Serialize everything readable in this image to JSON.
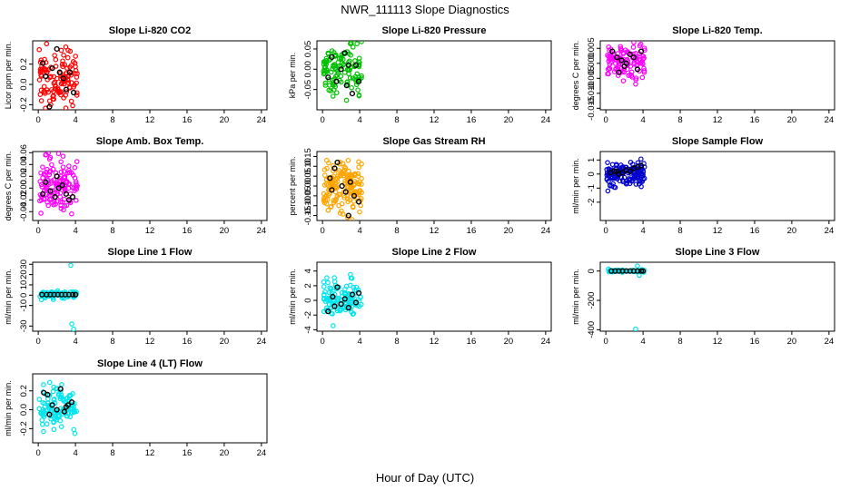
{
  "chart_data": {
    "type": "scatter",
    "title": "NWR_111113  Slope Diagnostics",
    "xlabel": "Hour of Day (UTC)",
    "xlim": [
      0,
      24
    ],
    "x_ticks": [
      0,
      4,
      8,
      12,
      16,
      20,
      24
    ],
    "panels": [
      {
        "id": "co2",
        "title": "Slope Li-820 CO2",
        "ylabel": "Licor ppm per min.",
        "ylim": [
          -0.25,
          0.43
        ],
        "y_ticks": [
          -0.2,
          0.0,
          0.2
        ],
        "y_tick_labels": [
          "-0.2",
          "0.0",
          "0.2"
        ],
        "color": "#ff0000",
        "seed": 11,
        "n": 120,
        "x_range": [
          0.1,
          4.2
        ],
        "y_spread": 0.19,
        "y_center": 0.06,
        "black_points": [
          [
            0.5,
            0.21
          ],
          [
            0.8,
            0.08
          ],
          [
            1.2,
            -0.22
          ],
          [
            1.5,
            0.16
          ],
          [
            2.0,
            0.35
          ],
          [
            2.3,
            0.12
          ],
          [
            2.7,
            0.06
          ],
          [
            3.0,
            -0.05
          ],
          [
            3.4,
            0.12
          ],
          [
            3.8,
            -0.08
          ]
        ]
      },
      {
        "id": "pressure",
        "title": "Slope Li-820 Pressure",
        "ylabel": "kPa per min.",
        "ylim": [
          -0.1,
          0.07
        ],
        "y_ticks": [
          -0.05,
          0.0,
          0.05
        ],
        "y_tick_labels": [
          "-0.05",
          "0.00",
          "0.05"
        ],
        "color": "#00c000",
        "seed": 23,
        "n": 120,
        "x_range": [
          0.1,
          4.2
        ],
        "y_spread": 0.04,
        "y_center": 0.0,
        "black_points": [
          [
            0.6,
            -0.02
          ],
          [
            1.0,
            0.03
          ],
          [
            1.5,
            -0.03
          ],
          [
            2.0,
            0.0
          ],
          [
            2.4,
            0.04
          ],
          [
            2.8,
            0.01
          ],
          [
            3.2,
            -0.06
          ],
          [
            3.6,
            0.01
          ],
          [
            3.9,
            -0.03
          ],
          [
            2.6,
            -0.04
          ]
        ]
      },
      {
        "id": "temp",
        "title": "Slope Li-820 Temp.",
        "ylabel": "degrees C per min.",
        "ylim": [
          -0.0155,
          0.0075
        ],
        "y_ticks": [
          -0.015,
          -0.01,
          -0.005,
          0.0,
          0.005
        ],
        "y_tick_labels": [
          "-0.015",
          "-0.010",
          "-0.005",
          "0.000",
          "0.005"
        ],
        "color": "#ff00ff",
        "seed": 37,
        "n": 110,
        "x_range": [
          0.1,
          4.2
        ],
        "y_spread": 0.0045,
        "y_center": 0.0,
        "black_points": [
          [
            0.7,
            0.004
          ],
          [
            1.2,
            0.002
          ],
          [
            1.7,
            0.001
          ],
          [
            2.2,
            0.0
          ],
          [
            2.6,
            0.003
          ],
          [
            3.0,
            0.002
          ],
          [
            3.4,
            -0.002
          ],
          [
            3.8,
            0.004
          ],
          [
            2.0,
            -0.001
          ],
          [
            1.4,
            -0.003
          ]
        ]
      },
      {
        "id": "ambbox",
        "title": "Slope Amb. Box Temp.",
        "ylabel": "degrees C per min.",
        "ylim": [
          -0.055,
          0.062
        ],
        "y_ticks": [
          -0.04,
          -0.02,
          0.0,
          0.02,
          0.04,
          0.06
        ],
        "y_tick_labels": [
          "-0.04",
          "-0.02",
          "0.00",
          "0.02",
          "0.04",
          "0.06"
        ],
        "color": "#ff00ff",
        "seed": 41,
        "n": 130,
        "x_range": [
          0.1,
          4.2
        ],
        "y_spread": 0.03,
        "y_center": 0.005,
        "black_points": [
          [
            0.5,
            -0.01
          ],
          [
            0.8,
            0.01
          ],
          [
            1.3,
            -0.005
          ],
          [
            1.8,
            -0.015
          ],
          [
            2.2,
            0.0
          ],
          [
            2.6,
            0.005
          ],
          [
            3.0,
            -0.01
          ],
          [
            3.3,
            -0.02
          ],
          [
            3.7,
            -0.015
          ],
          [
            2.0,
            0.02
          ]
        ]
      },
      {
        "id": "rh",
        "title": "Slope Gas Stream RH",
        "ylabel": "percent per min.",
        "ylim": [
          -0.175,
          0.175
        ],
        "y_ticks": [
          -0.15,
          -0.1,
          -0.05,
          0.0,
          0.05,
          0.1,
          0.15
        ],
        "y_tick_labels": [
          "-0.15",
          "-0.10",
          "-0.05",
          "0.00",
          "0.05",
          "0.10",
          "0.15"
        ],
        "color": "#ffa500",
        "seed": 53,
        "n": 170,
        "x_range": [
          0.1,
          4.2
        ],
        "y_spread": 0.08,
        "y_center": 0.0,
        "black_points": [
          [
            0.8,
            0.04
          ],
          [
            1.3,
            0.09
          ],
          [
            1.6,
            0.12
          ],
          [
            2.1,
            0.0
          ],
          [
            2.5,
            -0.03
          ],
          [
            3.0,
            0.02
          ],
          [
            3.4,
            -0.05
          ],
          [
            3.9,
            -0.08
          ],
          [
            2.8,
            -0.15
          ],
          [
            1.0,
            -0.02
          ]
        ]
      },
      {
        "id": "sample",
        "title": "Slope Sample Flow",
        "ylabel": "ml/min per min.",
        "ylim": [
          -3.3,
          1.6
        ],
        "y_ticks": [
          -2,
          -1,
          0,
          1
        ],
        "y_tick_labels": [
          "-2",
          "-1",
          "0",
          "1"
        ],
        "color": "#0000cc",
        "seed": 67,
        "n": 140,
        "x_range": [
          0.1,
          4.2
        ],
        "y_spread": 0.55,
        "y_center": 0.0,
        "black_points": [
          [
            0.5,
            0.1
          ],
          [
            0.9,
            0.2
          ],
          [
            1.4,
            0.0
          ],
          [
            1.8,
            0.1
          ],
          [
            2.2,
            0.3
          ],
          [
            2.6,
            0.2
          ],
          [
            3.0,
            0.4
          ],
          [
            3.4,
            0.5
          ],
          [
            3.8,
            0.6
          ],
          [
            1.2,
            0.2
          ]
        ]
      },
      {
        "id": "line1",
        "title": "Slope Line 1 Flow",
        "ylabel": "ml/min per min.",
        "ylim": [
          -35,
          32
        ],
        "y_ticks": [
          -30,
          -10,
          0,
          10,
          20,
          30
        ],
        "y_tick_labels": [
          "-30",
          "-10",
          "0",
          "10",
          "20",
          "30"
        ],
        "color": "#00e5ee",
        "seed": 71,
        "n": 90,
        "x_range": [
          0.1,
          4.2
        ],
        "y_spread": 2.5,
        "y_center": 0.5,
        "black_points": [
          [
            0.4,
            0.5
          ],
          [
            0.9,
            0.5
          ],
          [
            1.3,
            0.5
          ],
          [
            1.7,
            0.5
          ],
          [
            2.1,
            0.5
          ],
          [
            2.5,
            0.5
          ],
          [
            2.9,
            0.5
          ],
          [
            3.3,
            0.5
          ],
          [
            3.7,
            0.5
          ],
          [
            4.0,
            0.5
          ]
        ],
        "extra_points": [
          [
            3.5,
            29
          ],
          [
            3.6,
            -28
          ],
          [
            3.8,
            -33
          ]
        ]
      },
      {
        "id": "line2",
        "title": "Slope Line 2 Flow",
        "ylabel": "ml/min per min.",
        "ylim": [
          -4.2,
          5.2
        ],
        "y_ticks": [
          -4,
          -2,
          0,
          2,
          4
        ],
        "y_tick_labels": [
          "-4",
          "-2",
          "0",
          "2",
          "4"
        ],
        "color": "#00e5ee",
        "seed": 83,
        "n": 120,
        "x_range": [
          0.1,
          4.2
        ],
        "y_spread": 1.5,
        "y_center": 0.3,
        "black_points": [
          [
            0.6,
            -1.5
          ],
          [
            1.1,
            0.5
          ],
          [
            1.6,
            1.8
          ],
          [
            2.0,
            -0.5
          ],
          [
            2.4,
            0.2
          ],
          [
            2.8,
            -1.0
          ],
          [
            3.2,
            0.8
          ],
          [
            3.6,
            -0.3
          ],
          [
            3.9,
            1.0
          ],
          [
            1.3,
            -0.8
          ]
        ]
      },
      {
        "id": "line3",
        "title": "Slope Line 3 Flow",
        "ylabel": "ml/min per min.",
        "ylim": [
          -410,
          60
        ],
        "y_ticks": [
          -400,
          -200,
          0
        ],
        "y_tick_labels": [
          "-400",
          "-200",
          "0"
        ],
        "color": "#00e5ee",
        "seed": 97,
        "n": 70,
        "x_range": [
          0.2,
          4.2
        ],
        "y_spread": 6,
        "y_center": 0,
        "black_points": [
          [
            0.6,
            0
          ],
          [
            1.0,
            0
          ],
          [
            1.4,
            0
          ],
          [
            1.8,
            0
          ],
          [
            2.2,
            0
          ],
          [
            2.6,
            0
          ],
          [
            3.0,
            0
          ],
          [
            3.4,
            0
          ],
          [
            3.8,
            0
          ],
          [
            4.0,
            0
          ]
        ],
        "extra_points": [
          [
            3.2,
            -395
          ],
          [
            3.6,
            -30
          ],
          [
            3.4,
            35
          ]
        ]
      },
      {
        "id": "line4",
        "title": "Slope Line 4 (LT) Flow",
        "ylabel": "ml/min per min.",
        "ylim": [
          -0.35,
          0.38
        ],
        "y_ticks": [
          -0.2,
          0.0,
          0.2
        ],
        "y_tick_labels": [
          "-0.2",
          "0.0",
          "0.2"
        ],
        "color": "#00e5ee",
        "seed": 101,
        "n": 120,
        "x_range": [
          0.1,
          4.2
        ],
        "y_spread": 0.14,
        "y_center": 0.02,
        "black_points": [
          [
            0.6,
            0.18
          ],
          [
            1.0,
            0.16
          ],
          [
            1.5,
            0.05
          ],
          [
            2.0,
            0.0
          ],
          [
            2.4,
            0.22
          ],
          [
            2.8,
            -0.02
          ],
          [
            3.2,
            0.05
          ],
          [
            3.6,
            0.08
          ],
          [
            1.2,
            -0.05
          ],
          [
            3.0,
            0.03
          ]
        ]
      }
    ]
  }
}
